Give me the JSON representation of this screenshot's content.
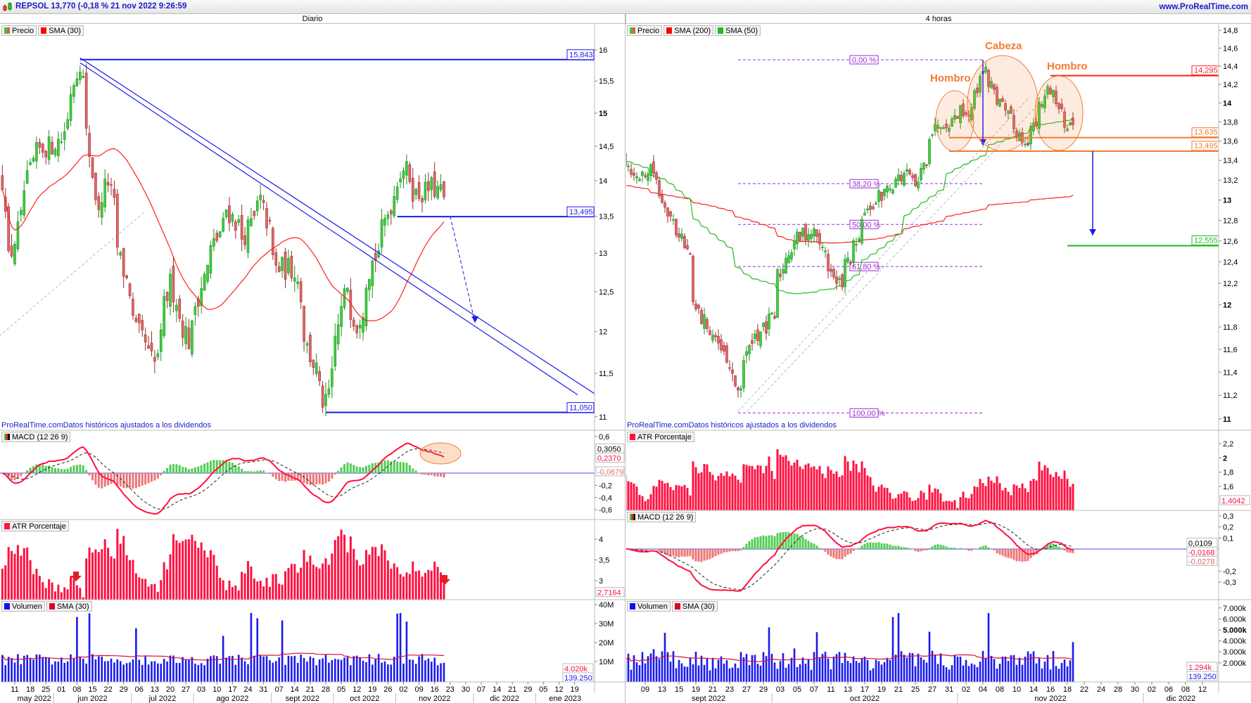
{
  "header": {
    "title": "REPSOL 13,770 (-0,18 % 21 nov 2022 9:26:59",
    "website": "www.ProRealTime.com",
    "logo_icon": "candlestick-icon"
  },
  "colors": {
    "up": "#3fcf3f",
    "down": "#e06a6a",
    "sma_red": "#ff0000",
    "sma_green": "#22bb22",
    "trendline": "#1a1aee",
    "annotation": "#f47a30",
    "fib": "#9b30d0",
    "atr": "#ff1040",
    "volume": "#1a1aee"
  },
  "left": {
    "timeframe": "Diario",
    "legend": [
      "Precio",
      "SMA (30)"
    ],
    "source_note": "ProRealTime.comDatos históricos ajustados a los dividendos",
    "macd_legend": "MACD (12 26 9)",
    "atr_legend": "ATR Porcentaje",
    "vol_legend": [
      "Volumen",
      "SMA (30)"
    ]
  },
  "right": {
    "timeframe": "4 horas",
    "legend": [
      "Precio",
      "SMA (200)",
      "SMA (50)"
    ],
    "source_note": "ProRealTime.comDatos históricos ajustados a los dividendos",
    "atr_legend": "ATR Porcentaje",
    "macd_legend": "MACD (12 26 9)",
    "vol_legend": [
      "Volumen",
      "SMA (30)"
    ]
  },
  "chart_data": [
    {
      "type": "candlestick",
      "name": "REPSOL Diario",
      "scale": "log",
      "price_path": [
        [
          "2022-05-05",
          14.0
        ],
        [
          "2022-05-09",
          12.9
        ],
        [
          "2022-05-20",
          14.4
        ],
        [
          "2022-06-01",
          14.6
        ],
        [
          "2022-06-09",
          15.8
        ],
        [
          "2022-06-14",
          14.4
        ],
        [
          "2022-06-17",
          13.5
        ],
        [
          "2022-06-22",
          14.0
        ],
        [
          "2022-06-28",
          12.9
        ],
        [
          "2022-07-05",
          12.0
        ],
        [
          "2022-07-13",
          11.6
        ],
        [
          "2022-07-20",
          12.6
        ],
        [
          "2022-07-28",
          11.9
        ],
        [
          "2022-08-05",
          12.8
        ],
        [
          "2022-08-15",
          13.6
        ],
        [
          "2022-08-22",
          13.2
        ],
        [
          "2022-08-30",
          13.7
        ],
        [
          "2022-09-06",
          12.8
        ],
        [
          "2022-09-14",
          12.8
        ],
        [
          "2022-09-20",
          11.8
        ],
        [
          "2022-09-28",
          11.1
        ],
        [
          "2022-10-03",
          11.9
        ],
        [
          "2022-10-07",
          12.6
        ],
        [
          "2022-10-12",
          12.1
        ],
        [
          "2022-10-18",
          12.8
        ],
        [
          "2022-10-24",
          13.3
        ],
        [
          "2022-10-28",
          13.8
        ],
        [
          "2022-11-02",
          14.2
        ],
        [
          "2022-11-08",
          13.8
        ],
        [
          "2022-11-15",
          13.9
        ],
        [
          "2022-11-21",
          13.77
        ]
      ],
      "y_ticks": [
        {
          "label": "16",
          "v": 16
        },
        {
          "label": "15,5",
          "v": 15.5
        },
        {
          "label": "15",
          "v": 15,
          "bold": true
        },
        {
          "label": "14,5",
          "v": 14.5
        },
        {
          "label": "14",
          "v": 14
        },
        {
          "label": "13,5",
          "v": 13.5
        },
        {
          "label": "13",
          "v": 13
        },
        {
          "label": "12,5",
          "v": 12.5
        },
        {
          "label": "12",
          "v": 12
        },
        {
          "label": "11,5",
          "v": 11.5
        },
        {
          "label": "11",
          "v": 11
        }
      ],
      "levels": [
        {
          "label": "15,843",
          "v": 15.843,
          "from": "2022-06-09"
        },
        {
          "label": "13,495",
          "v": 13.495,
          "from": "2022-10-31"
        },
        {
          "label": "11,050",
          "v": 11.05,
          "from": "2022-09-28"
        }
      ],
      "trendlines": [
        [
          [
            "2022-06-09",
            15.87
          ],
          [
            "2023-01-27",
            11.25
          ]
        ],
        [
          [
            "2022-06-09",
            15.79
          ],
          [
            "2023-01-19",
            11.25
          ]
        ]
      ],
      "projection_arrow": [
        [
          "2022-11-23",
          13.5
        ],
        [
          "2022-12-05",
          12.11
        ]
      ],
      "support_dashed": [
        [
          "2022-05-04",
          11.91
        ],
        [
          "2022-07-08",
          13.57
        ]
      ],
      "macd": {
        "y_ticks": [
          {
            "label": "0,6",
            "v": 0.6
          },
          {
            "label": "-0,2",
            "v": -0.2
          },
          {
            "label": "-0,4",
            "v": -0.4
          },
          {
            "label": "-0,6",
            "v": -0.6
          }
        ],
        "readouts": [
          {
            "label": "0,3050",
            "v": 0.305,
            "color": "#000"
          },
          {
            "label": "0,2370",
            "v": 0.237,
            "color": "#ff1040"
          },
          {
            "label": "-0,0679",
            "v": -0.0679,
            "color": "#e06a6a"
          }
        ]
      },
      "atr": {
        "range": [
          2.6,
          4.25
        ],
        "y_ticks": [
          {
            "label": "4",
            "v": 4
          },
          {
            "label": "3,5",
            "v": 3.5
          },
          {
            "label": "3",
            "v": 3
          }
        ],
        "readouts": [
          {
            "label": "2,7164",
            "v": 2.7164,
            "color": "#ff1040"
          }
        ]
      },
      "volume": {
        "unit": "M",
        "y_ticks": [
          {
            "label": "40M",
            "v": 40
          },
          {
            "label": "30M",
            "v": 30
          },
          {
            "label": "20M",
            "v": 20
          },
          {
            "label": "10M",
            "v": 10
          }
        ],
        "readouts": [
          {
            "label": "4.020k",
            "v": 4.02,
            "color": "#ff1040"
          },
          {
            "label": "139.250",
            "v": 0.139,
            "color": "#1a1aee"
          }
        ]
      },
      "x_days": [
        "11",
        "18",
        "25",
        "01",
        "08",
        "15",
        "22",
        "29",
        "06",
        "13",
        "20",
        "27",
        "03",
        "10",
        "17",
        "24",
        "31",
        "07",
        "14",
        "21",
        "28",
        "05",
        "12",
        "19",
        "26",
        "02",
        "09",
        "16",
        "23",
        "30",
        "07",
        "14",
        "21",
        "29",
        "05",
        "12",
        "19"
      ],
      "x_months": [
        "may 2022",
        "jun 2022",
        "jul 2022",
        "ago 2022",
        "sept 2022",
        "oct 2022",
        "nov 2022",
        "dic 2022",
        "ene 2023"
      ]
    },
    {
      "type": "candlestick",
      "name": "REPSOL 4 horas",
      "scale": "log",
      "price_path": [
        [
          "2022-09-07",
          13.5
        ],
        [
          "2022-09-08",
          13.2
        ],
        [
          "2022-09-12",
          13.4
        ],
        [
          "2022-09-14",
          12.9
        ],
        [
          "2022-09-16",
          12.6
        ],
        [
          "2022-09-19",
          12.0
        ],
        [
          "2022-09-21",
          11.8
        ],
        [
          "2022-09-23",
          11.5
        ],
        [
          "2022-09-26",
          11.1
        ],
        [
          "2022-09-28",
          11.7
        ],
        [
          "2022-09-30",
          11.8
        ],
        [
          "2022-10-03",
          12.2
        ],
        [
          "2022-10-05",
          12.6
        ],
        [
          "2022-10-07",
          12.7
        ],
        [
          "2022-10-11",
          12.5
        ],
        [
          "2022-10-12",
          12.1
        ],
        [
          "2022-10-14",
          12.5
        ],
        [
          "2022-10-17",
          12.8
        ],
        [
          "2022-10-19",
          13.0
        ],
        [
          "2022-10-21",
          13.2
        ],
        [
          "2022-10-24",
          13.3
        ],
        [
          "2022-10-26",
          13.1
        ],
        [
          "2022-10-27",
          13.6
        ],
        [
          "2022-10-28",
          13.8
        ],
        [
          "2022-11-01",
          13.8
        ],
        [
          "2022-11-02",
          14.0
        ],
        [
          "2022-11-03",
          13.8
        ],
        [
          "2022-11-04",
          14.35
        ],
        [
          "2022-11-07",
          14.3
        ],
        [
          "2022-11-09",
          13.9
        ],
        [
          "2022-11-10",
          13.8
        ],
        [
          "2022-11-11",
          13.6
        ],
        [
          "2022-11-14",
          13.7
        ],
        [
          "2022-11-15",
          13.8
        ],
        [
          "2022-11-16",
          14.2
        ],
        [
          "2022-11-17",
          14.1
        ],
        [
          "2022-11-18",
          13.8
        ],
        [
          "2022-11-21",
          13.77
        ]
      ],
      "sma50": [
        [
          "2022-09-07",
          13.4
        ],
        [
          "2022-09-14",
          13.2
        ],
        [
          "2022-09-21",
          12.7
        ],
        [
          "2022-09-28",
          12.25
        ],
        [
          "2022-10-05",
          12.1
        ],
        [
          "2022-10-12",
          12.15
        ],
        [
          "2022-10-19",
          12.5
        ],
        [
          "2022-10-26",
          12.95
        ],
        [
          "2022-11-01",
          13.3
        ],
        [
          "2022-11-07",
          13.55
        ],
        [
          "2022-11-14",
          13.75
        ],
        [
          "2022-11-21",
          13.85
        ]
      ],
      "sma200": [
        [
          "2022-09-07",
          13.15
        ],
        [
          "2022-09-14",
          13.05
        ],
        [
          "2022-09-21",
          12.95
        ],
        [
          "2022-09-28",
          12.8
        ],
        [
          "2022-10-05",
          12.6
        ],
        [
          "2022-10-12",
          12.58
        ],
        [
          "2022-10-19",
          12.62
        ],
        [
          "2022-10-26",
          12.75
        ],
        [
          "2022-11-01",
          12.85
        ],
        [
          "2022-11-07",
          12.95
        ],
        [
          "2022-11-14",
          13.0
        ],
        [
          "2022-11-21",
          13.05
        ]
      ],
      "y_ticks": [
        {
          "label": "14,8",
          "v": 14.8
        },
        {
          "label": "14,6",
          "v": 14.6
        },
        {
          "label": "14,4",
          "v": 14.4
        },
        {
          "label": "14,2",
          "v": 14.2
        },
        {
          "label": "14",
          "v": 14,
          "bold": true
        },
        {
          "label": "13,8",
          "v": 13.8
        },
        {
          "label": "13,6",
          "v": 13.6
        },
        {
          "label": "13,4",
          "v": 13.4
        },
        {
          "label": "13,2",
          "v": 13.2
        },
        {
          "label": "13",
          "v": 13,
          "bold": true
        },
        {
          "label": "12,8",
          "v": 12.8
        },
        {
          "label": "12,6",
          "v": 12.6
        },
        {
          "label": "12,4",
          "v": 12.4
        },
        {
          "label": "12,2",
          "v": 12.2
        },
        {
          "label": "12",
          "v": 12,
          "bold": true
        },
        {
          "label": "11,8",
          "v": 11.8
        },
        {
          "label": "11,6",
          "v": 11.6
        },
        {
          "label": "11,4",
          "v": 11.4
        },
        {
          "label": "11,2",
          "v": 11.2
        },
        {
          "label": "11",
          "v": 11,
          "bold": true
        }
      ],
      "levels": [
        {
          "label": "14,295",
          "v": 14.295,
          "from": "2022-11-16",
          "color": "#ff2020"
        },
        {
          "label": "13,635",
          "v": 13.635,
          "from": "2022-10-31",
          "color": "#f47a30"
        },
        {
          "label": "13,495",
          "v": 13.495,
          "from": "2022-10-31",
          "color": "#f47a30"
        },
        {
          "label": "12,555",
          "v": 12.555,
          "from": "2022-11-18",
          "color": "#22bb22"
        }
      ],
      "fibonacci": {
        "from": "2022-09-26",
        "to": "2022-11-04",
        "high": 14.47,
        "low": 11.05,
        "levels": [
          {
            "label": "0,00 %",
            "pct": 0
          },
          {
            "label": "38,20 %",
            "pct": 38.2
          },
          {
            "label": "50,00 %",
            "pct": 50
          },
          {
            "label": "61,80 %",
            "pct": 61.8
          },
          {
            "label": "100,00 %",
            "pct": 100
          }
        ]
      },
      "arrows": [
        [
          [
            "2022-11-04",
            14.47
          ],
          [
            "2022-11-04",
            13.495
          ]
        ],
        [
          [
            "2022-11-23",
            13.495
          ],
          [
            "2022-11-23",
            12.6
          ]
        ]
      ],
      "annotations": [
        "Hombro",
        "Cabeza",
        "Hombro"
      ],
      "atr": {
        "range": [
          1.3,
          2.12
        ],
        "y_ticks": [
          {
            "label": "2,2",
            "v": 2.2
          },
          {
            "label": "2",
            "v": 2,
            "bold": true
          },
          {
            "label": "1,8",
            "v": 1.8
          },
          {
            "label": "1,6",
            "v": 1.6
          }
        ],
        "readouts": [
          {
            "label": "1,4042",
            "v": 1.4042,
            "color": "#ff1040"
          }
        ]
      },
      "macd": {
        "y_ticks": [
          {
            "label": "0,3",
            "v": 0.3
          },
          {
            "label": "0,2",
            "v": 0.2
          },
          {
            "label": "0,1",
            "v": 0.1
          },
          {
            "label": "-0,2",
            "v": -0.2
          },
          {
            "label": "-0,3",
            "v": -0.3
          }
        ],
        "readouts": [
          {
            "label": "0,0109",
            "v": 0.0109,
            "color": "#000"
          },
          {
            "label": "-0,0168",
            "v": -0.0168,
            "color": "#ff1040"
          },
          {
            "label": "-0,0278",
            "v": -0.0278,
            "color": "#e06a6a"
          }
        ]
      },
      "volume": {
        "unit": "k",
        "y_ticks": [
          {
            "label": "7.000k",
            "v": 7
          },
          {
            "label": "6.000k",
            "v": 6
          },
          {
            "label": "5.000k",
            "v": 5,
            "bold": true
          },
          {
            "label": "4.000k",
            "v": 4
          },
          {
            "label": "3.000k",
            "v": 3
          },
          {
            "label": "2.000k",
            "v": 2
          }
        ],
        "readouts": [
          {
            "label": "1.294k",
            "v": 1.294,
            "color": "#ff1040"
          },
          {
            "label": "139.250",
            "v": 0.139,
            "color": "#1a1aee"
          }
        ]
      },
      "x_days": [
        "09",
        "13",
        "15",
        "19",
        "21",
        "23",
        "27",
        "29",
        "03",
        "05",
        "07",
        "11",
        "13",
        "17",
        "19",
        "21",
        "25",
        "27",
        "31",
        "02",
        "04",
        "08",
        "10",
        "14",
        "16",
        "18",
        "22",
        "24",
        "28",
        "30",
        "02",
        "06",
        "08",
        "12"
      ],
      "x_months": [
        "sept 2022",
        "oct 2022",
        "nov 2022",
        "dic 2022"
      ]
    }
  ]
}
